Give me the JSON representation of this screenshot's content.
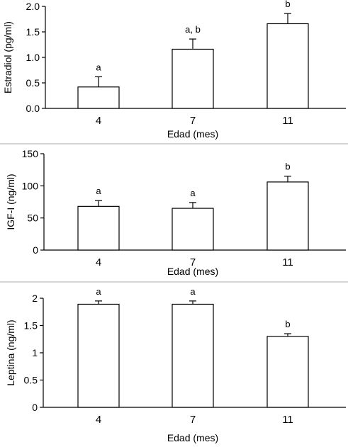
{
  "chart_data": [
    {
      "type": "bar",
      "xlabel": "Edad (mes)",
      "ylabel": "Estradiol (pg/ml)",
      "categories": [
        "4",
        "7",
        "11"
      ],
      "values": [
        0.42,
        1.16,
        1.66
      ],
      "errors": [
        0.2,
        0.2,
        0.2
      ],
      "bar_labels": [
        "a",
        "a, b",
        "b"
      ],
      "ylim": [
        0,
        2.0
      ],
      "yticks": [
        "0.0",
        "0.5",
        "1.0",
        "1.5",
        "2.0"
      ],
      "grid": false
    },
    {
      "type": "bar",
      "xlabel": "Edad (mes)",
      "ylabel": "IGF-I (ng/ml)",
      "categories": [
        "4",
        "7",
        "11"
      ],
      "values": [
        68,
        65,
        106
      ],
      "errors": [
        9,
        9,
        9
      ],
      "bar_labels": [
        "a",
        "a",
        "b"
      ],
      "ylim": [
        0,
        150
      ],
      "yticks": [
        "0",
        "50",
        "100",
        "150"
      ],
      "grid": false
    },
    {
      "type": "bar",
      "xlabel": "Edad (mes)",
      "ylabel": "Leptina (ng/ml)",
      "categories": [
        "4",
        "7",
        "11"
      ],
      "values": [
        1.89,
        1.89,
        1.3
      ],
      "errors": [
        0.06,
        0.06,
        0.05
      ],
      "bar_labels": [
        "a",
        "a",
        "b"
      ],
      "ylim": [
        0,
        2
      ],
      "yticks": [
        "0",
        "0.5",
        "1",
        "1.5",
        "2"
      ],
      "grid": false
    }
  ]
}
